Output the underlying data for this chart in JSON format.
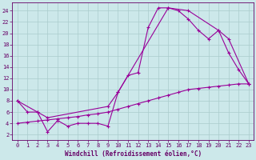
{
  "xlabel": "Windchill (Refroidissement éolien,°C)",
  "background_color": "#cce8ea",
  "grid_color": "#aacccc",
  "line_color": "#990099",
  "xlim": [
    -0.5,
    23.5
  ],
  "ylim": [
    1,
    25.5
  ],
  "yticks": [
    2,
    4,
    6,
    8,
    10,
    12,
    14,
    16,
    18,
    20,
    22,
    24
  ],
  "xticks": [
    0,
    1,
    2,
    3,
    4,
    5,
    6,
    7,
    8,
    9,
    10,
    11,
    12,
    13,
    14,
    15,
    16,
    17,
    18,
    19,
    20,
    21,
    22,
    23
  ],
  "curve1_x": [
    0,
    1,
    2,
    3,
    4,
    5,
    6,
    7,
    8,
    9,
    10,
    11,
    12,
    13,
    14,
    15,
    16,
    17,
    18,
    19,
    20,
    21,
    22,
    23
  ],
  "curve1_y": [
    8,
    6,
    6,
    2.5,
    4.5,
    3.5,
    4,
    4,
    4,
    3.5,
    9.5,
    12.5,
    13,
    21,
    24.5,
    24.5,
    24,
    22.5,
    20.5,
    19,
    20.5,
    16.5,
    13.5,
    11
  ],
  "curve2_x": [
    0,
    2,
    3,
    9,
    10,
    15,
    17,
    20,
    21,
    23
  ],
  "curve2_y": [
    8,
    6,
    5,
    7,
    9.5,
    24.5,
    24,
    20.5,
    19,
    11
  ],
  "curve3_x": [
    0,
    1,
    2,
    3,
    4,
    5,
    6,
    7,
    8,
    9,
    10,
    11,
    12,
    13,
    14,
    15,
    16,
    17,
    18,
    19,
    20,
    21,
    22,
    23
  ],
  "curve3_y": [
    4,
    4.2,
    4.4,
    4.6,
    4.8,
    5.0,
    5.2,
    5.5,
    5.7,
    6.0,
    6.5,
    7.0,
    7.5,
    8.0,
    8.5,
    9.0,
    9.5,
    10.0,
    10.2,
    10.4,
    10.6,
    10.8,
    11.0,
    11.0
  ]
}
